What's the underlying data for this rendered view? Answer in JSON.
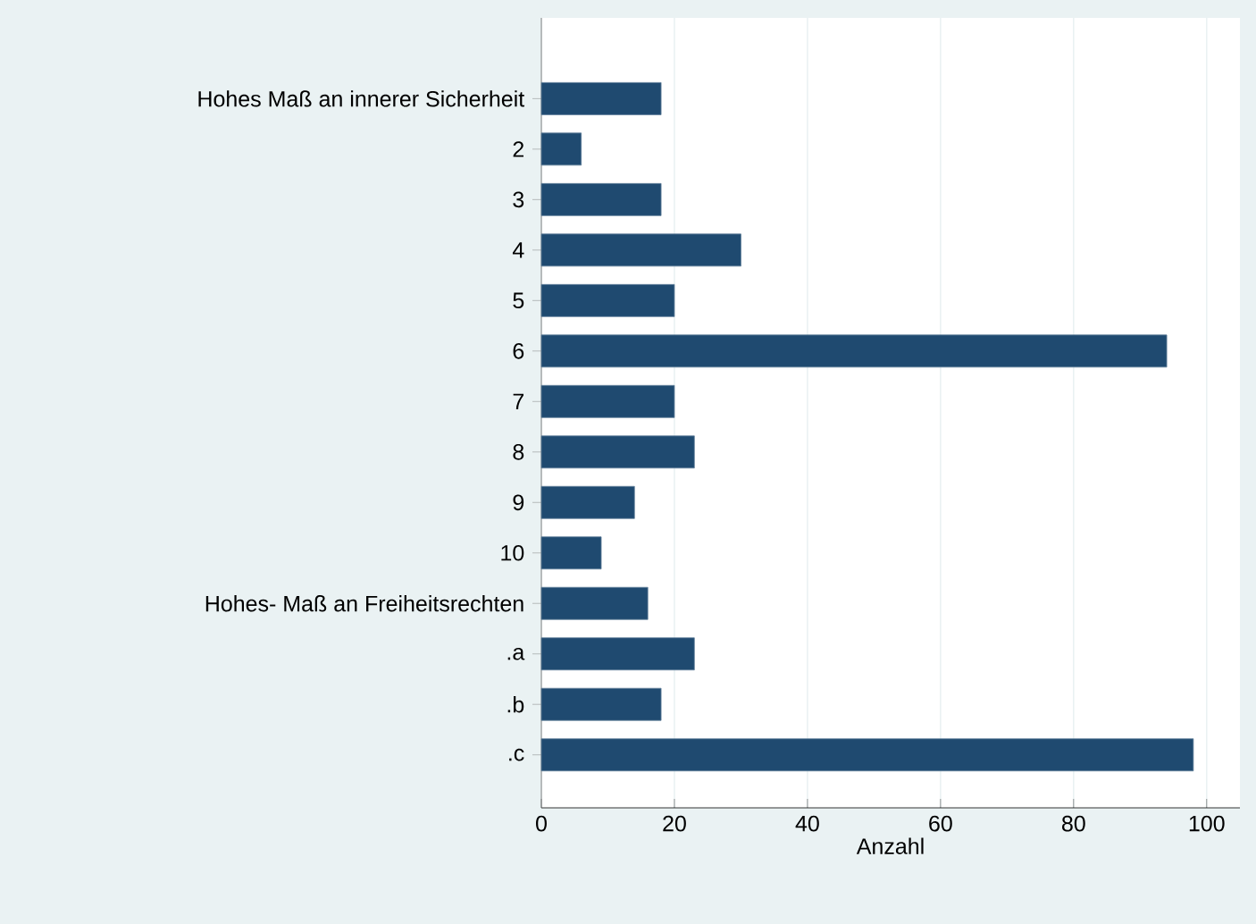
{
  "chart_data": {
    "type": "bar",
    "orientation": "horizontal",
    "xlabel": "Anzahl",
    "categories": [
      "Hohes Maß an innerer Sicherheit",
      "2",
      "3",
      "4",
      "5",
      "6",
      "7",
      "8",
      "9",
      "10",
      "Hohes- Maß an Freiheitsrechten",
      ".a",
      ".b",
      ".c"
    ],
    "values": [
      18,
      6,
      18,
      30,
      20,
      94,
      20,
      23,
      14,
      9,
      16,
      23,
      18,
      98
    ],
    "color": "#1f4a70",
    "xlim": [
      0,
      105
    ],
    "xticks": [
      0,
      20,
      40,
      60,
      80,
      100
    ],
    "grid": "x"
  }
}
